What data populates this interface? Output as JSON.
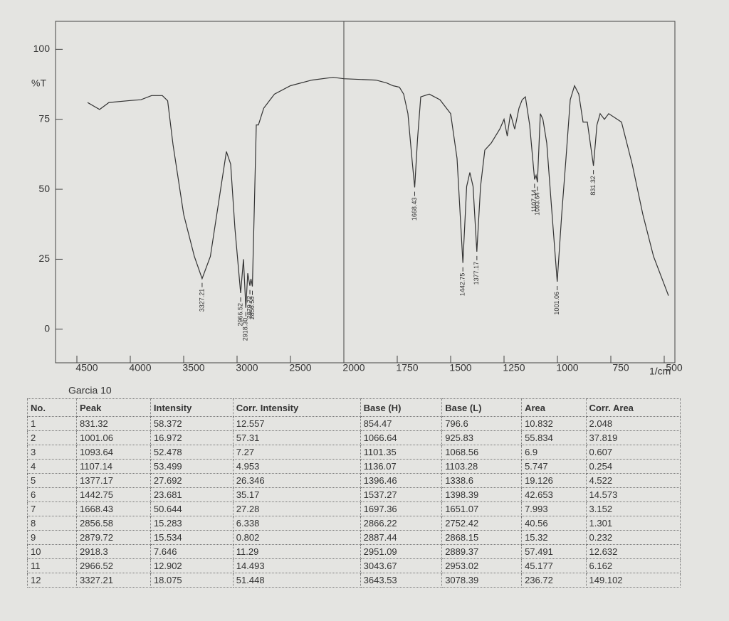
{
  "chart_data": {
    "type": "line",
    "caption": "Garcia 10",
    "y_label": "%T",
    "x_unit": "1/cm",
    "color": "#333333",
    "x": [
      4400,
      4287,
      4200,
      4000,
      3900,
      3800,
      3700,
      3650,
      3600,
      3500,
      3400,
      3327.21,
      3250,
      3150,
      3100,
      3060,
      3020,
      2966.52,
      2940,
      2918.3,
      2900,
      2879.72,
      2870,
      2856.58,
      2840,
      2820,
      2800,
      2750,
      2650,
      2500,
      2300,
      2100,
      2000,
      1850,
      1800,
      1770,
      1740,
      1720,
      1700,
      1680,
      1668.43,
      1655,
      1640,
      1600,
      1550,
      1500,
      1470,
      1442.75,
      1425,
      1410,
      1395,
      1377.17,
      1360,
      1340,
      1310,
      1290,
      1270,
      1250,
      1235,
      1220,
      1200,
      1180,
      1165,
      1150,
      1130,
      1107.14,
      1100,
      1093.64,
      1080,
      1068,
      1050,
      1030,
      1001.06,
      980,
      960,
      940,
      920,
      900,
      880,
      860,
      831.32,
      815,
      800,
      780,
      760,
      700,
      650,
      600,
      550,
      500,
      480
    ],
    "values": [
      81,
      78.5,
      81,
      81.7,
      82,
      83.5,
      83.5,
      81.6,
      66,
      41,
      26,
      18.075,
      26,
      51,
      63.5,
      59,
      36,
      12.902,
      25,
      7.646,
      20,
      15.534,
      18,
      15.283,
      41,
      73,
      73,
      79,
      84,
      87,
      89,
      90,
      89.5,
      89,
      88,
      87,
      86.5,
      84,
      77,
      60,
      50.644,
      68,
      83,
      84,
      82,
      77,
      61,
      23.681,
      51,
      56,
      51,
      27.692,
      51,
      64,
      66.5,
      69,
      71.5,
      75,
      69,
      77,
      71.5,
      79,
      82,
      83,
      73,
      53.499,
      55,
      52.478,
      77,
      75,
      66.5,
      46,
      16.972,
      41,
      61,
      82,
      87,
      84,
      74,
      74,
      58.372,
      73,
      77,
      75,
      77,
      74,
      59,
      41,
      26,
      16,
      12
    ],
    "xlim": [
      4700,
      450
    ],
    "xticks": [
      4500,
      4000,
      3500,
      3000,
      2500,
      2000,
      1750,
      1500,
      1250,
      1000,
      750,
      500
    ],
    "ylim": [
      -12,
      110
    ],
    "yticks": [
      0,
      25,
      50,
      75,
      100
    ],
    "annotations": [
      3327.21,
      2966.52,
      {
        "value": 2918.3,
        "label": "2918.30"
      },
      2879.72,
      2856.58,
      1668.43,
      1442.75,
      1377.17,
      1107.14,
      1093.64,
      1001.06,
      831.32
    ]
  },
  "table": {
    "header": [
      "No.",
      "Peak",
      "Intensity",
      "Corr. Intensity",
      "Base (H)",
      "Base (L)",
      "Area",
      "Corr. Area"
    ],
    "rows": [
      [
        1,
        831.32,
        58.372,
        12.557,
        854.47,
        796.6,
        10.832,
        2.048
      ],
      [
        2,
        1001.06,
        16.972,
        57.31,
        1066.64,
        925.83,
        55.834,
        37.819
      ],
      [
        3,
        1093.64,
        52.478,
        7.27,
        1101.35,
        1068.56,
        6.9,
        0.607
      ],
      [
        4,
        1107.14,
        53.499,
        4.953,
        1136.07,
        1103.28,
        5.747,
        0.254
      ],
      [
        5,
        1377.17,
        27.692,
        26.346,
        1396.46,
        1338.6,
        19.126,
        4.522
      ],
      [
        6,
        1442.75,
        23.681,
        35.17,
        1537.27,
        1398.39,
        42.653,
        14.573
      ],
      [
        7,
        1668.43,
        50.644,
        27.28,
        1697.36,
        1651.07,
        7.993,
        3.152
      ],
      [
        8,
        2856.58,
        15.283,
        6.338,
        2866.22,
        2752.42,
        40.56,
        1.301
      ],
      [
        9,
        2879.72,
        15.534,
        0.802,
        2887.44,
        2868.15,
        15.32,
        0.232
      ],
      [
        10,
        2918.3,
        7.646,
        11.29,
        2951.09,
        2889.37,
        57.491,
        12.632
      ],
      [
        11,
        2966.52,
        12.902,
        14.493,
        3043.67,
        2953.02,
        45.177,
        6.162
      ],
      [
        12,
        3327.21,
        18.075,
        51.448,
        3643.53,
        3078.39,
        236.72,
        149.102
      ]
    ]
  }
}
